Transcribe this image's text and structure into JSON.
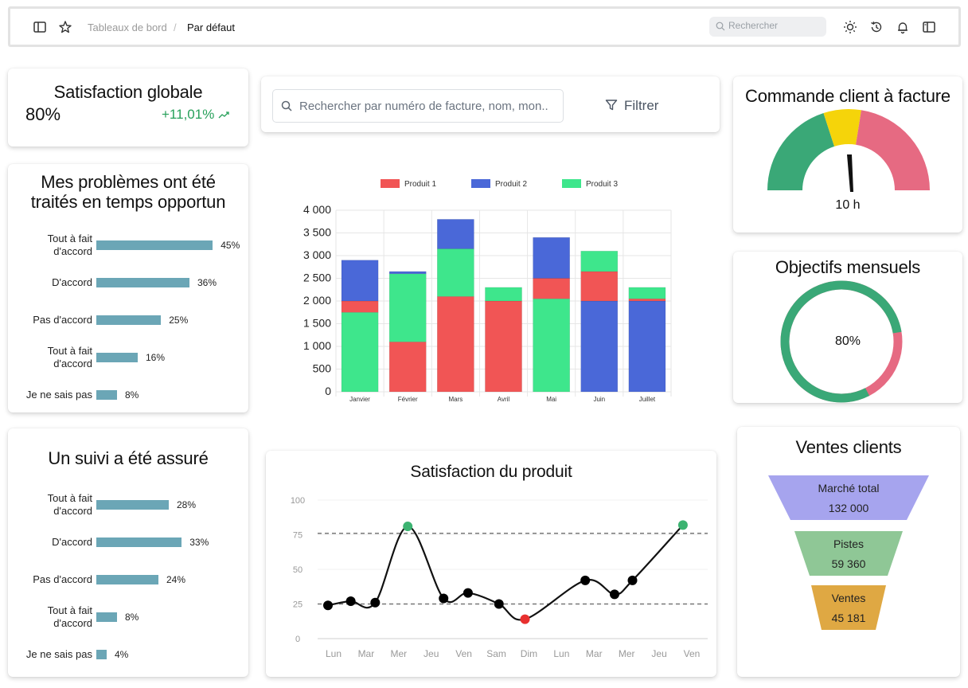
{
  "topbar": {
    "breadcrumb": [
      "Tableaux de bord",
      "Par défaut"
    ],
    "search_placeholder": "Rechercher",
    "icons": [
      "sidebar-toggle-icon",
      "star-icon",
      "sun-icon",
      "history-icon",
      "bell-icon",
      "panel-icon"
    ]
  },
  "satisfaction": {
    "title": "Satisfaction globale",
    "value": "80%",
    "delta": "+11,01%",
    "delta_color": "#27a05a"
  },
  "problems": {
    "title_line1": "Mes problèmes ont été",
    "title_line2": "traités en temps opportun",
    "rows": [
      {
        "label1": "Tout à fait",
        "label2": "d'accord",
        "pct": "45%",
        "value": 45
      },
      {
        "label1": "D'accord",
        "label2": "",
        "pct": "36%",
        "value": 36
      },
      {
        "label1": "Pas d'accord",
        "label2": "",
        "pct": "25%",
        "value": 25
      },
      {
        "label1": "Tout à fait",
        "label2": "d'accord",
        "pct": "16%",
        "value": 16
      },
      {
        "label1": "Je ne sais pas",
        "label2": "",
        "pct": "8%",
        "value": 8
      }
    ]
  },
  "suivi": {
    "title": "Un suivi a été assuré",
    "rows": [
      {
        "label1": "Tout à fait",
        "label2": "d'accord",
        "pct": "28%",
        "value": 28
      },
      {
        "label1": "D'accord",
        "label2": "",
        "pct": "33%",
        "value": 33
      },
      {
        "label1": "Pas d'accord",
        "label2": "",
        "pct": "24%",
        "value": 24
      },
      {
        "label1": "Tout à fait",
        "label2": "d'accord",
        "pct": "8%",
        "value": 8
      },
      {
        "label1": "Je ne sais pas",
        "label2": "",
        "pct": "4%",
        "value": 4
      }
    ]
  },
  "invoice_search": {
    "placeholder": "Rechercher par numéro de facture, nom, mon..",
    "filter_label": "Filtrer"
  },
  "chart_data": [
    {
      "type": "bar",
      "stacked": true,
      "categories": [
        "Janvier",
        "Février",
        "Mars",
        "Avril",
        "Mai",
        "Juin",
        "Juillet"
      ],
      "series": [
        {
          "name": "Produit 1",
          "color": "#f15555",
          "values": [
            250,
            1100,
            2100,
            2000,
            450,
            650,
            50
          ]
        },
        {
          "name": "Produit 2",
          "color": "#4a68d8",
          "values": [
            900,
            50,
            650,
            0,
            900,
            0,
            0
          ]
        },
        {
          "name": "Produit 3",
          "color": "#3ee68c",
          "values": [
            1750,
            1500,
            1050,
            300,
            2050,
            450,
            250
          ]
        }
      ],
      "series_extra": {
        "Juin": {
          "Produit 2": 2000
        },
        "Juillet": {
          "Produit 2": 2000
        }
      },
      "ylim": [
        0,
        4000
      ],
      "yticks": [
        "0",
        "500",
        "1 000",
        "1 500",
        "2 000",
        "2 500",
        "3 000",
        "3 500",
        "4 000"
      ],
      "legend": "top",
      "grid": true
    },
    {
      "type": "line",
      "title": "Satisfaction du produit",
      "x": [
        "Lun",
        "Mar",
        "Mer",
        "Jeu",
        "Ven",
        "Sam",
        "Dim",
        "Lun",
        "Mar",
        "Mer",
        "Jeu",
        "Ven"
      ],
      "points_x": [
        0,
        0.7,
        1.45,
        2.45,
        3.55,
        4.3,
        5.25,
        6.05,
        7.9,
        8.8,
        9.35,
        10.9
      ],
      "points_y": [
        24,
        27,
        26,
        81,
        29,
        33,
        25,
        14,
        42,
        32,
        42,
        82
      ],
      "point_colors": [
        "#000",
        "#000",
        "#000",
        "#3cb371",
        "#000",
        "#000",
        "#000",
        "#e8302f",
        "#000",
        "#000",
        "#000",
        "#3cb371"
      ],
      "yticks": [
        "0",
        "25",
        "50",
        "75",
        "100"
      ],
      "ylim": [
        0,
        100
      ],
      "reference_lines": [
        76,
        25
      ]
    }
  ],
  "commande": {
    "title": "Commande client à facture",
    "value_label": "10 h",
    "segments": [
      {
        "color": "#3aa877",
        "share": 0.4
      },
      {
        "color": "#f5d40a",
        "share": 0.15
      },
      {
        "color": "#e66a82",
        "share": 0.45
      }
    ],
    "needle": 0.52
  },
  "objectifs": {
    "title": "Objectifs mensuels",
    "value": "80%",
    "progress": 0.8,
    "progress_color": "#3aa877",
    "rest_color": "#e66a82"
  },
  "ventes": {
    "title": "Ventes clients",
    "stages": [
      {
        "label": "Marché total",
        "value": "132 000",
        "color": "#a6a4ee"
      },
      {
        "label": "Pistes",
        "value": "59 360",
        "color": "#8fc796"
      },
      {
        "label": "Ventes",
        "value": "45 181",
        "color": "#dfa843"
      }
    ]
  }
}
